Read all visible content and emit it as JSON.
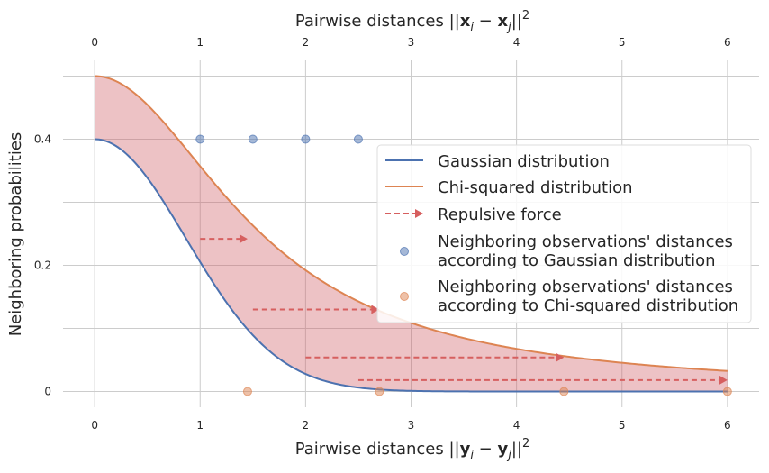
{
  "chart_data": {
    "type": "line",
    "x_top": {
      "title_prefix": "Pairwise distances ||",
      "title_x": "x",
      "title_i": "i",
      "title_minus": " − ",
      "title_xj": "x",
      "title_j": "j",
      "title_suffix": "||",
      "title_sup": "2",
      "ticks": [
        0,
        1,
        2,
        3,
        4,
        5,
        6
      ],
      "tick_labels": [
        "0",
        "1",
        "2",
        "3",
        "4",
        "5",
        "6"
      ]
    },
    "x_bottom": {
      "title_prefix": "Pairwise distances ||",
      "title_y": "y",
      "title_i": "i",
      "title_minus": " − ",
      "title_yj": "y",
      "title_j": "j",
      "title_suffix": "||",
      "title_sup": "2",
      "ticks": [
        0,
        1,
        2,
        3,
        4,
        5,
        6
      ],
      "tick_labels": [
        "0",
        "1",
        "2",
        "3",
        "4",
        "5",
        "6"
      ]
    },
    "y_axis": {
      "title": "Neighboring probabilities",
      "ticks": [
        0,
        0.2,
        0.4
      ],
      "tick_labels": [
        "0",
        "0.2",
        "0.4"
      ],
      "grid_values": [
        0,
        0.1,
        0.2,
        0.3,
        0.4,
        0.5
      ]
    },
    "xlim": [
      -0.3,
      6.3
    ],
    "ylim": [
      -0.025,
      0.525
    ],
    "grid": true,
    "series": [
      {
        "name": "Gaussian distribution",
        "kind": "line",
        "color": "#4c72b0",
        "function": "gaussian",
        "peak": 0.4
      },
      {
        "name": "Chi-squared distribution",
        "kind": "line",
        "color": "#dd8452",
        "function": "chi_squared",
        "peak": 0.5
      }
    ],
    "fill_between": {
      "color": "#cf5f67",
      "opacity": 0.38
    },
    "repulsive_force": {
      "name": "Repulsive force",
      "color": "#d65f5f",
      "arrows": [
        {
          "x_from": 1.0,
          "x_to": 1.45,
          "y": 0.242
        },
        {
          "x_from": 1.5,
          "x_to": 2.7,
          "y": 0.13
        },
        {
          "x_from": 2.0,
          "x_to": 4.45,
          "y": 0.054
        },
        {
          "x_from": 2.5,
          "x_to": 6.0,
          "y": 0.018
        }
      ]
    },
    "scatter_gaussian": {
      "name_line1": "Neighboring observations' distances",
      "name_line2": "according to Gaussian distribution",
      "color": "#4c72b0",
      "points": [
        {
          "x": 1.0,
          "y": 0.4
        },
        {
          "x": 1.5,
          "y": 0.4
        },
        {
          "x": 2.0,
          "y": 0.4
        },
        {
          "x": 2.5,
          "y": 0.4
        }
      ]
    },
    "scatter_chi": {
      "name_line1": "Neighboring observations' distances",
      "name_line2": "according to Chi-squared distribution",
      "color": "#dd8452",
      "points": [
        {
          "x": 1.45,
          "y": 0
        },
        {
          "x": 2.7,
          "y": 0
        },
        {
          "x": 4.45,
          "y": 0
        },
        {
          "x": 6.0,
          "y": 0
        }
      ]
    },
    "legend": {
      "placement": "center-right"
    }
  }
}
